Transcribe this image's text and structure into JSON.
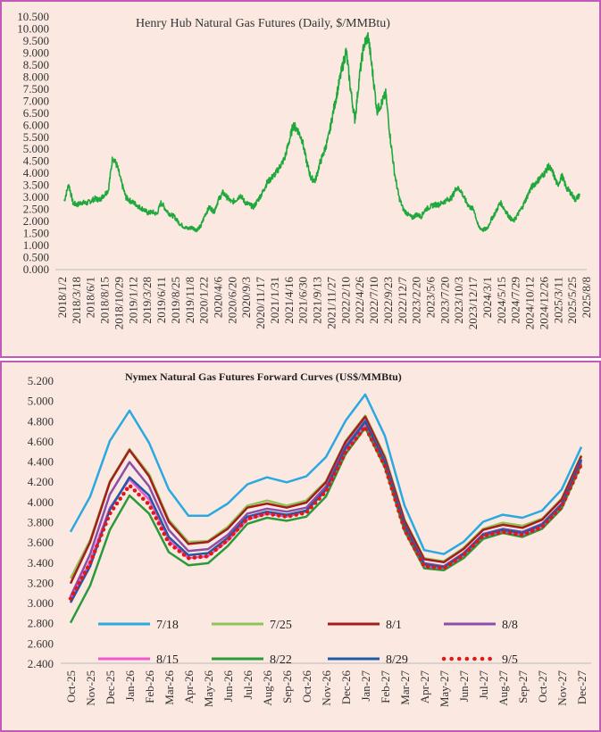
{
  "chart_data": [
    {
      "type": "line",
      "title": "Henry Hub Natural Gas Futures (Daily, $/MMBtu)",
      "ylim": [
        0,
        10.5
      ],
      "y_ticks": [
        "0.000",
        "0.500",
        "1.000",
        "1.500",
        "2.000",
        "2.500",
        "3.000",
        "3.500",
        "4.000",
        "4.500",
        "5.000",
        "5.500",
        "6.000",
        "6.500",
        "7.000",
        "7.500",
        "8.000",
        "8.500",
        "9.000",
        "9.500",
        "10.000",
        "10.500"
      ],
      "x_ticks": [
        "2018/1/2",
        "2018/3/18",
        "2018/6/1",
        "2018/8/15",
        "2018/10/29",
        "2019/1/12",
        "2019/3/28",
        "2019/6/11",
        "2019/8/25",
        "2019/11/8",
        "2020/1/22",
        "2020/4/6",
        "2020/6/20",
        "2020/9/3",
        "2020/11/17",
        "2021/1/31",
        "2021/4/16",
        "2021/6/30",
        "2021/9/13",
        "2021/11/27",
        "2022/2/10",
        "2022/4/26",
        "2022/7/10",
        "2022/9/23",
        "2022/12/7",
        "2023/2/20",
        "2023/5/6",
        "2023/7/20",
        "2023/10/3",
        "2023/12/17",
        "2024/3/1",
        "2024/5/15",
        "2024/7/29",
        "2024/10/12",
        "2024/12/26",
        "2025/3/11",
        "2025/5/25",
        "2025/8/8"
      ],
      "grid": false,
      "color": "#1fa83c",
      "series": [
        {
          "values": [
            2.85,
            3.55,
            2.75,
            2.7,
            2.8,
            2.75,
            2.85,
            2.95,
            2.9,
            3.1,
            3.3,
            4.7,
            4.3,
            3.6,
            3.0,
            2.85,
            2.75,
            2.6,
            2.5,
            2.35,
            2.4,
            2.3,
            2.8,
            2.5,
            2.3,
            2.2,
            1.95,
            1.8,
            1.7,
            1.75,
            1.65,
            1.8,
            2.3,
            2.6,
            2.4,
            2.9,
            3.2,
            3.0,
            2.8,
            2.9,
            3.1,
            2.8,
            2.7,
            2.6,
            2.9,
            3.2,
            3.6,
            3.8,
            4.0,
            4.3,
            4.6,
            5.3,
            6.0,
            5.8,
            5.4,
            4.5,
            3.8,
            3.7,
            4.4,
            4.9,
            5.5,
            6.5,
            7.4,
            8.3,
            9.1,
            7.5,
            6.2,
            8.0,
            9.3,
            9.7,
            8.2,
            6.6,
            6.9,
            7.3,
            5.5,
            4.0,
            3.0,
            2.5,
            2.3,
            2.15,
            2.3,
            2.2,
            2.5,
            2.6,
            2.7,
            2.7,
            2.8,
            2.9,
            3.0,
            3.4,
            3.3,
            2.9,
            2.6,
            2.5,
            1.8,
            1.65,
            1.7,
            2.1,
            2.4,
            2.8,
            2.5,
            2.2,
            2.0,
            2.3,
            2.6,
            3.0,
            3.4,
            3.6,
            3.8,
            4.0,
            4.3,
            4.0,
            3.5,
            3.9,
            3.4,
            3.2,
            2.9,
            3.1
          ]
        }
      ]
    },
    {
      "type": "line",
      "title": "Nymex Natural Gas Futures Forward Curves (US$/MMBtu)",
      "ylim": [
        2.4,
        5.2
      ],
      "y_ticks": [
        "2.400",
        "2.600",
        "2.800",
        "3.000",
        "3.200",
        "3.400",
        "3.600",
        "3.800",
        "4.000",
        "4.200",
        "4.400",
        "4.600",
        "4.800",
        "5.000",
        "5.200"
      ],
      "categories": [
        "Oct-25",
        "Nov-25",
        "Dec-25",
        "Jan-26",
        "Feb-26",
        "Mar-26",
        "Apr-26",
        "May-26",
        "Jun-26",
        "Jul-26",
        "Aug-26",
        "Sep-26",
        "Oct-26",
        "Nov-26",
        "Dec-26",
        "Jan-27",
        "Feb-27",
        "Mar-27",
        "Apr-27",
        "May-27",
        "Jun-27",
        "Jul-27",
        "Aug-27",
        "Sep-27",
        "Oct-27",
        "Nov-27",
        "Dec-27"
      ],
      "grid": false,
      "legend": "bottom",
      "series": [
        {
          "name": "7/18",
          "color": "#2aa8e0",
          "values": [
            3.7,
            4.05,
            4.6,
            4.9,
            4.58,
            4.12,
            3.86,
            3.86,
            3.98,
            4.17,
            4.24,
            4.19,
            4.25,
            4.44,
            4.8,
            5.06,
            4.65,
            3.96,
            3.52,
            3.48,
            3.6,
            3.8,
            3.87,
            3.84,
            3.91,
            4.12,
            4.54
          ]
        },
        {
          "name": "7/25",
          "color": "#8fc35a",
          "values": [
            3.24,
            3.62,
            4.2,
            4.52,
            4.27,
            3.82,
            3.6,
            3.61,
            3.75,
            3.96,
            4.01,
            3.96,
            4.01,
            4.2,
            4.6,
            4.85,
            4.45,
            3.82,
            3.44,
            3.41,
            3.54,
            3.73,
            3.79,
            3.76,
            3.83,
            4.03,
            4.46
          ]
        },
        {
          "name": "8/1",
          "color": "#a51c1c",
          "values": [
            3.19,
            3.6,
            4.19,
            4.51,
            4.25,
            3.8,
            3.58,
            3.6,
            3.73,
            3.94,
            3.98,
            3.94,
            3.99,
            4.19,
            4.59,
            4.84,
            4.43,
            3.81,
            3.43,
            3.4,
            3.53,
            3.72,
            3.77,
            3.74,
            3.82,
            4.02,
            4.45
          ]
        },
        {
          "name": "8/8",
          "color": "#8a4fa8",
          "values": [
            3.06,
            3.48,
            4.07,
            4.39,
            4.15,
            3.72,
            3.51,
            3.53,
            3.67,
            3.88,
            3.93,
            3.9,
            3.94,
            4.15,
            4.55,
            4.8,
            4.4,
            3.77,
            3.39,
            3.36,
            3.49,
            3.68,
            3.73,
            3.7,
            3.78,
            3.98,
            4.42
          ]
        },
        {
          "name": "8/15",
          "color": "#f057d0",
          "values": [
            3.02,
            3.41,
            3.94,
            4.22,
            4.02,
            3.62,
            3.44,
            3.46,
            3.61,
            3.82,
            3.88,
            3.85,
            3.9,
            4.11,
            4.51,
            4.76,
            4.37,
            3.74,
            3.36,
            3.33,
            3.46,
            3.65,
            3.7,
            3.67,
            3.75,
            3.95,
            4.39
          ]
        },
        {
          "name": "8/22",
          "color": "#2a9a3a",
          "values": [
            2.8,
            3.17,
            3.72,
            4.06,
            3.88,
            3.5,
            3.37,
            3.39,
            3.56,
            3.78,
            3.84,
            3.81,
            3.85,
            4.05,
            4.47,
            4.73,
            4.34,
            3.71,
            3.34,
            3.32,
            3.44,
            3.63,
            3.69,
            3.65,
            3.73,
            3.93,
            4.37
          ]
        },
        {
          "name": "8/29",
          "color": "#1f5aa6",
          "values": [
            3.0,
            3.36,
            3.92,
            4.24,
            4.06,
            3.65,
            3.47,
            3.49,
            3.64,
            3.85,
            3.9,
            3.87,
            3.91,
            4.12,
            4.53,
            4.79,
            4.39,
            3.76,
            3.38,
            3.35,
            3.48,
            3.67,
            3.72,
            3.69,
            3.77,
            3.97,
            4.41
          ]
        },
        {
          "name": "9/5",
          "color": "#e01818",
          "dotted": true,
          "values": [
            3.04,
            3.39,
            3.88,
            4.16,
            3.97,
            3.59,
            3.44,
            3.46,
            3.62,
            3.83,
            3.88,
            3.85,
            3.89,
            4.1,
            4.49,
            4.74,
            4.35,
            3.72,
            3.36,
            3.34,
            3.47,
            3.66,
            3.7,
            3.67,
            3.75,
            3.95,
            4.37
          ]
        }
      ]
    }
  ]
}
